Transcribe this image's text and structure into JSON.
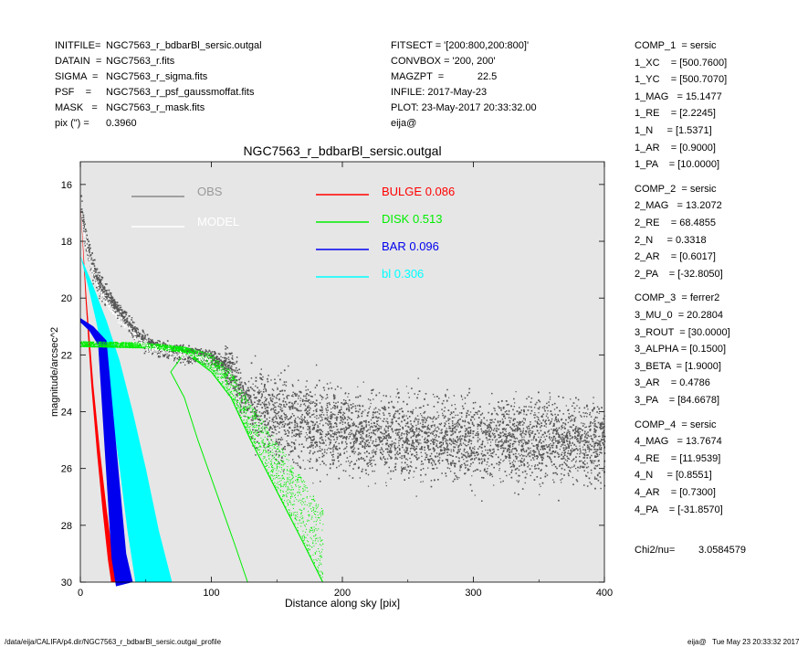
{
  "header": {
    "left": [
      {
        "k": "INITFILE=",
        "v": "NGC7563_r_bdbarBl_sersic.outgal"
      },
      {
        "k": "DATAIN  =",
        "v": "NGC7563_r.fits"
      },
      {
        "k": "SIGMA  =",
        "v": "NGC7563_r_sigma.fits"
      },
      {
        "k": "PSF    =",
        "v": "NGC7563_r_psf_gaussmoffat.fits"
      },
      {
        "k": "MASK   =",
        "v": "NGC7563_r_mask.fits"
      },
      {
        "k": "pix (\") =",
        "v": "0.3960"
      }
    ],
    "middle": [
      "FITSECT = '[200:800,200:800]'",
      "CONVBOX = '200, 200'",
      "MAGZPT  =            22.5",
      "INFILE: 2017-May-23",
      "PLOT: 23-May-2017 20:33:32.00",
      "eija@"
    ]
  },
  "components": [
    {
      "title": "COMP_1  = sersic",
      "rows": [
        "1_XC    = [500.7600]",
        "1_YC    = [500.7070]",
        "1_MAG   = 15.1477",
        "1_RE    = [2.2245]",
        "1_N     = [1.5371]",
        "1_AR    = [0.9000]",
        "1_PA    = [10.0000]"
      ]
    },
    {
      "title": "COMP_2  = sersic",
      "rows": [
        "2_MAG   = 13.2072",
        "2_RE    = 68.4855",
        "2_N     = 0.3318",
        "2_AR    = [0.6017]",
        "2_PA    = [-32.8050]"
      ]
    },
    {
      "title": "COMP_3  = ferrer2",
      "rows": [
        "3_MU_0  = 20.2804",
        "3_ROUT  = [30.0000]",
        "3_ALPHA = [0.1500]",
        "3_BETA  = [1.9000]",
        "3_AR    = 0.4786",
        "3_PA    = [84.6678]"
      ]
    },
    {
      "title": "COMP_4  = sersic",
      "rows": [
        "4_MAG   = 13.7674",
        "4_RE    = [11.9539]",
        "4_N     = [0.8551]",
        "4_AR    = [0.7300]",
        "4_PA    = [-31.8570]"
      ]
    }
  ],
  "chi2": {
    "label": "Chi2/nu=",
    "value": "3.0584579"
  },
  "footer": {
    "left": "/data/eija/CALIFA/p4.dir/NGC7563_r_bdbarBl_sersic.outgal_profile",
    "right": "eija@   Tue May 23 20:33:32 2017"
  },
  "colors": {
    "plot_bg": "#e6e6e6",
    "obs": "#555555",
    "model": "#ffffff",
    "bulge": "#ff0000",
    "disk": "#00ee00",
    "bar": "#0000ee",
    "bl": "#00ffff"
  },
  "chart_data": {
    "type": "scatter",
    "title": "NGC7563_r_bdbarBl_sersic.outgal",
    "xlabel": "Distance along sky [pix]",
    "ylabel": "magnitude/arcsec^2",
    "xlim": [
      0,
      400
    ],
    "ylim": [
      30,
      15.2
    ],
    "y_inverted": true,
    "xticks": [
      0,
      100,
      200,
      300,
      400
    ],
    "yticks": [
      16,
      18,
      20,
      22,
      24,
      26,
      28,
      30
    ],
    "grid": false,
    "legend_left": [
      {
        "name": "OBS",
        "color": "#888888",
        "text_color": "#999999"
      },
      {
        "name": "MODEL",
        "color": "#ffffff",
        "text_color": "#ffffff"
      }
    ],
    "legend_right": [
      {
        "name": "BULGE",
        "value": "0.086",
        "color": "#ff0000"
      },
      {
        "name": "DISK",
        "value": "0.513",
        "color": "#00ee00"
      },
      {
        "name": "BAR",
        "value": "0.096",
        "color": "#0000ee"
      },
      {
        "name": "bl",
        "value": "0.306",
        "color": "#00ffff"
      }
    ],
    "series": [
      {
        "name": "OBS",
        "x": [
          0,
          3,
          8,
          15,
          25,
          35,
          50,
          70,
          100,
          115,
          125,
          150,
          200,
          250,
          300,
          350,
          400
        ],
        "y": [
          16.5,
          17.8,
          18.8,
          19.6,
          20.2,
          20.8,
          21.6,
          21.9,
          22.1,
          22.5,
          23.5,
          24.3,
          24.7,
          24.9,
          25.0,
          25.0,
          25.1
        ]
      },
      {
        "name": "MODEL",
        "x": [
          0,
          3,
          8,
          15,
          25,
          35,
          50,
          70,
          100
        ],
        "y": [
          16.7,
          17.9,
          18.9,
          19.8,
          20.5,
          21.0,
          21.7,
          21.95,
          22.2
        ]
      },
      {
        "name": "BULGE",
        "x": [
          0,
          5,
          10,
          15,
          20,
          25,
          28
        ],
        "y": [
          16.6,
          20.2,
          23.1,
          25.4,
          27.4,
          29.2,
          30.0
        ]
      },
      {
        "name": "DISK",
        "x": [
          0,
          50,
          80,
          100,
          115,
          130,
          150,
          170,
          185
        ],
        "y": [
          21.7,
          21.75,
          21.9,
          22.6,
          23.5,
          25.0,
          26.8,
          28.6,
          30.0
        ]
      },
      {
        "name": "BAR",
        "x": [
          0,
          10,
          20,
          30,
          35,
          40
        ],
        "y": [
          20.7,
          21.0,
          21.5,
          26.5,
          29.0,
          30.0
        ]
      },
      {
        "name": "bl",
        "x": [
          0,
          10,
          20,
          30,
          40,
          50,
          60,
          70
        ],
        "y": [
          18.5,
          19.6,
          20.8,
          22.2,
          24.0,
          26.0,
          28.2,
          30.0
        ]
      }
    ]
  }
}
